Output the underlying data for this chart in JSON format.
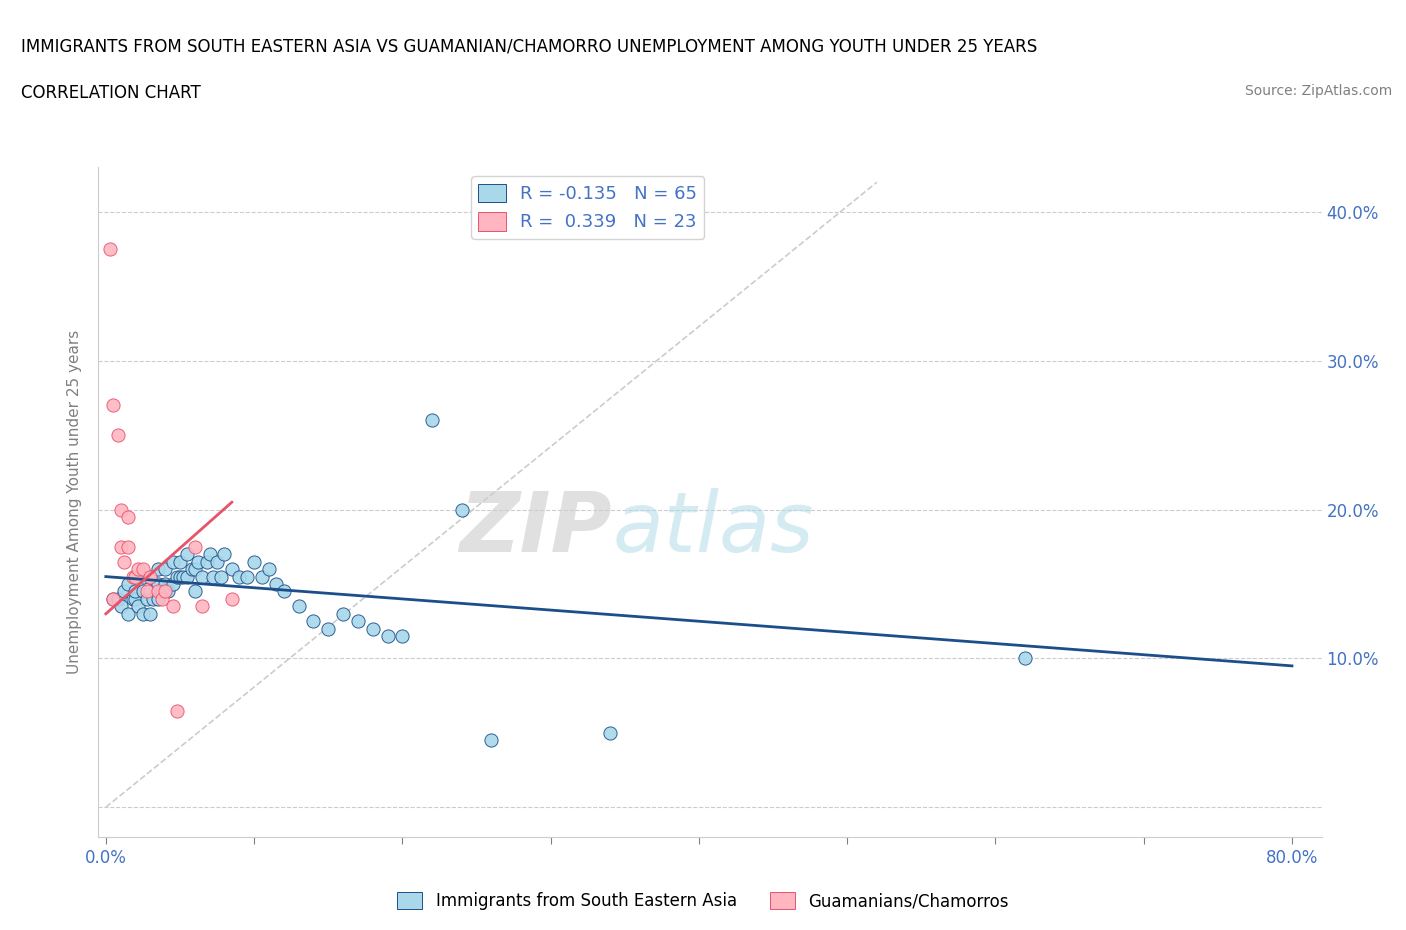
{
  "title_line1": "IMMIGRANTS FROM SOUTH EASTERN ASIA VS GUAMANIAN/CHAMORRO UNEMPLOYMENT AMONG YOUTH UNDER 25 YEARS",
  "title_line2": "CORRELATION CHART",
  "source_text": "Source: ZipAtlas.com",
  "ylabel": "Unemployment Among Youth under 25 years",
  "xlim": [
    -0.005,
    0.82
  ],
  "ylim": [
    -0.02,
    0.43
  ],
  "xticks": [
    0.0,
    0.1,
    0.2,
    0.3,
    0.4,
    0.5,
    0.6,
    0.7,
    0.8
  ],
  "xtick_labels": [
    "0.0%",
    "",
    "",
    "",
    "",
    "",
    "",
    "",
    "80.0%"
  ],
  "yticks": [
    0.0,
    0.1,
    0.2,
    0.3,
    0.4
  ],
  "right_ytick_labels": [
    "10.0%",
    "20.0%",
    "30.0%",
    "40.0%"
  ],
  "right_yticks": [
    0.1,
    0.2,
    0.3,
    0.4
  ],
  "R_blue": -0.135,
  "N_blue": 65,
  "R_pink": 0.339,
  "N_pink": 23,
  "legend_label_blue": "Immigrants from South Eastern Asia",
  "legend_label_pink": "Guamanians/Chamorros",
  "color_blue": "#A8D8EA",
  "color_pink": "#FFB6C1",
  "trend_color_blue": "#1C4F8A",
  "trend_color_pink": "#E8536A",
  "watermark_zip": "ZIP",
  "watermark_atlas": "atlas",
  "blue_x": [
    0.005,
    0.008,
    0.01,
    0.012,
    0.015,
    0.015,
    0.018,
    0.02,
    0.02,
    0.022,
    0.025,
    0.025,
    0.025,
    0.028,
    0.03,
    0.03,
    0.03,
    0.032,
    0.035,
    0.035,
    0.035,
    0.038,
    0.04,
    0.04,
    0.042,
    0.045,
    0.045,
    0.048,
    0.05,
    0.05,
    0.052,
    0.055,
    0.055,
    0.058,
    0.06,
    0.06,
    0.062,
    0.065,
    0.068,
    0.07,
    0.072,
    0.075,
    0.078,
    0.08,
    0.085,
    0.09,
    0.095,
    0.1,
    0.105,
    0.11,
    0.115,
    0.12,
    0.13,
    0.14,
    0.15,
    0.16,
    0.17,
    0.18,
    0.19,
    0.2,
    0.22,
    0.24,
    0.26,
    0.34,
    0.62
  ],
  "blue_y": [
    0.14,
    0.14,
    0.135,
    0.145,
    0.13,
    0.15,
    0.14,
    0.14,
    0.145,
    0.135,
    0.13,
    0.145,
    0.155,
    0.14,
    0.13,
    0.145,
    0.155,
    0.14,
    0.14,
    0.15,
    0.16,
    0.145,
    0.15,
    0.16,
    0.145,
    0.15,
    0.165,
    0.155,
    0.155,
    0.165,
    0.155,
    0.155,
    0.17,
    0.16,
    0.145,
    0.16,
    0.165,
    0.155,
    0.165,
    0.17,
    0.155,
    0.165,
    0.155,
    0.17,
    0.16,
    0.155,
    0.155,
    0.165,
    0.155,
    0.16,
    0.15,
    0.145,
    0.135,
    0.125,
    0.12,
    0.13,
    0.125,
    0.12,
    0.115,
    0.115,
    0.26,
    0.2,
    0.045,
    0.05,
    0.1
  ],
  "pink_x": [
    0.003,
    0.005,
    0.005,
    0.008,
    0.01,
    0.01,
    0.012,
    0.015,
    0.015,
    0.018,
    0.02,
    0.022,
    0.025,
    0.028,
    0.03,
    0.035,
    0.038,
    0.04,
    0.045,
    0.048,
    0.06,
    0.065,
    0.085
  ],
  "pink_y": [
    0.375,
    0.14,
    0.27,
    0.25,
    0.2,
    0.175,
    0.165,
    0.175,
    0.195,
    0.155,
    0.155,
    0.16,
    0.16,
    0.145,
    0.155,
    0.145,
    0.14,
    0.145,
    0.135,
    0.065,
    0.175,
    0.135,
    0.14
  ],
  "blue_trend_x": [
    0.0,
    0.8
  ],
  "blue_trend_y": [
    0.155,
    0.095
  ],
  "pink_trend_x": [
    0.0,
    0.085
  ],
  "pink_trend_y": [
    0.13,
    0.205
  ],
  "ref_line_x": [
    0.0,
    0.52
  ],
  "ref_line_y": [
    0.0,
    0.42
  ]
}
